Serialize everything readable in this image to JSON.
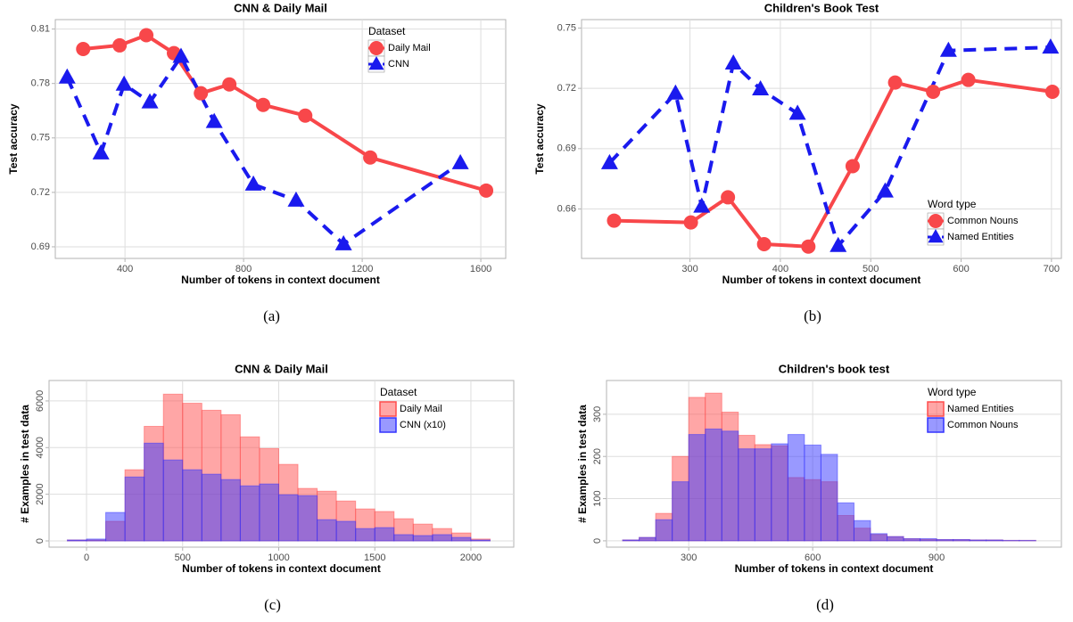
{
  "chart_data": [
    {
      "type": "line",
      "title": "CNN & Daily Mail",
      "x_label": "Number of tokens in context document",
      "y_label": "Test accuracy",
      "caption": "(a)",
      "legend_title": "Dataset",
      "legend_position": "top-right",
      "grid": true,
      "xlim": [
        165,
        1684
      ],
      "xticks": [
        400,
        800,
        1200,
        1600
      ],
      "ylim": [
        0.6836,
        0.8152
      ],
      "yticks": [
        0.69,
        0.72,
        0.75,
        0.78,
        0.81
      ],
      "series": [
        {
          "name": "Daily Mail",
          "color": "#f8474a",
          "marker": "circle",
          "dashed": false,
          "x": [
            259,
            382,
            472,
            565,
            656,
            752,
            866,
            1008,
            1227,
            1618
          ],
          "values": [
            0.799,
            0.801,
            0.8066,
            0.7967,
            0.7746,
            0.7795,
            0.7682,
            0.7623,
            0.7392,
            0.721
          ]
        },
        {
          "name": "CNN",
          "color": "#1a1aee",
          "marker": "triangle",
          "dashed": true,
          "x": [
            205,
            319,
            397,
            484,
            589,
            701,
            833,
            977,
            1137,
            1531
          ],
          "values": [
            0.7834,
            0.7416,
            0.7795,
            0.7697,
            0.7948,
            0.7589,
            0.7244,
            0.7156,
            0.6915,
            0.7362
          ]
        }
      ]
    },
    {
      "type": "line",
      "title": "Children's Book Test",
      "x_label": "Number of tokens in context document",
      "y_label": "Test accuracy",
      "caption": "(b)",
      "legend_title": "Word type",
      "legend_position": "bottom-right",
      "grid": true,
      "xlim": [
        180,
        711
      ],
      "xticks": [
        300,
        400,
        500,
        600,
        700
      ],
      "ylim": [
        0.6354,
        0.7542
      ],
      "yticks": [
        0.66,
        0.69,
        0.72,
        0.75
      ],
      "series": [
        {
          "name": "Common Nouns",
          "color": "#f8474a",
          "marker": "circle",
          "dashed": false,
          "x": [
            216,
            301,
            342,
            382,
            431,
            480,
            527,
            569,
            608,
            701
          ],
          "values": [
            0.6542,
            0.6533,
            0.6658,
            0.6425,
            0.6413,
            0.6813,
            0.7229,
            0.7183,
            0.7242,
            0.7183
          ]
        },
        {
          "name": "Named Entities",
          "color": "#1a1aee",
          "marker": "triangle",
          "dashed": true,
          "x": [
            211,
            284,
            313,
            348,
            378,
            419,
            464,
            516,
            586,
            699
          ],
          "values": [
            0.6829,
            0.7175,
            0.6613,
            0.7325,
            0.7196,
            0.7075,
            0.6417,
            0.6688,
            0.7388,
            0.7404
          ]
        }
      ]
    },
    {
      "type": "histogram",
      "title": "CNN & Daily Mail",
      "x_label": "Number of tokens in context document",
      "y_label": "# Examples in test data",
      "caption": "(c)",
      "legend_title": "Dataset",
      "legend_position": "top-right",
      "grid": true,
      "opacity": 0.5,
      "xlim": [
        -195,
        2223
      ],
      "xticks": [
        0,
        500,
        1000,
        1500,
        2000
      ],
      "ylim": [
        -267,
        6876
      ],
      "yticks": [
        0,
        2000,
        4000,
        6000
      ],
      "bins": [
        -100,
        0,
        100,
        200,
        300,
        400,
        500,
        600,
        700,
        800,
        900,
        1000,
        1100,
        1200,
        1300,
        1400,
        1500,
        1600,
        1700,
        1800,
        1900,
        2000,
        2100
      ],
      "series": [
        {
          "name": "Daily Mail",
          "color": "#ff4d4d",
          "values": [
            40,
            40,
            840,
            3050,
            4910,
            6290,
            5900,
            5600,
            5410,
            4460,
            3960,
            3280,
            2250,
            2130,
            1710,
            1370,
            1260,
            950,
            720,
            530,
            340,
            80
          ]
        },
        {
          "name": "CNN (x10)",
          "color": "#3333ff",
          "values": [
            40,
            80,
            1220,
            2740,
            4190,
            3470,
            3050,
            2860,
            2630,
            2360,
            2440,
            1980,
            1940,
            910,
            840,
            530,
            570,
            270,
            230,
            270,
            150,
            40
          ]
        }
      ]
    },
    {
      "type": "histogram",
      "title": "Children's book test",
      "x_label": "Number of tokens in context document",
      "y_label": "# Examples in test data",
      "caption": "(d)",
      "legend_title": "Word type",
      "legend_position": "top-right",
      "grid": true,
      "opacity": 0.5,
      "xlim": [
        101,
        1202
      ],
      "xticks": [
        300,
        600,
        900
      ],
      "ylim": [
        -15,
        380
      ],
      "yticks": [
        0,
        100,
        200,
        300
      ],
      "bins": [
        140,
        180,
        220,
        260,
        300,
        340,
        380,
        420,
        460,
        500,
        540,
        580,
        620,
        660,
        700,
        740,
        780,
        820,
        860,
        900,
        940,
        980,
        1020,
        1060,
        1100,
        1140
      ],
      "series": [
        {
          "name": "Named Entities",
          "color": "#ff4d4d",
          "values": [
            2,
            8,
            65,
            200,
            340,
            350,
            305,
            250,
            228,
            225,
            150,
            145,
            140,
            60,
            30,
            15,
            10,
            5,
            4,
            3,
            3,
            2,
            2,
            1,
            1
          ]
        },
        {
          "name": "Common Nouns",
          "color": "#3333ff",
          "values": [
            2,
            8,
            50,
            140,
            252,
            265,
            260,
            218,
            218,
            230,
            252,
            227,
            205,
            90,
            48,
            17,
            10,
            5,
            5,
            3,
            3,
            2,
            2,
            1,
            1
          ]
        }
      ]
    }
  ]
}
